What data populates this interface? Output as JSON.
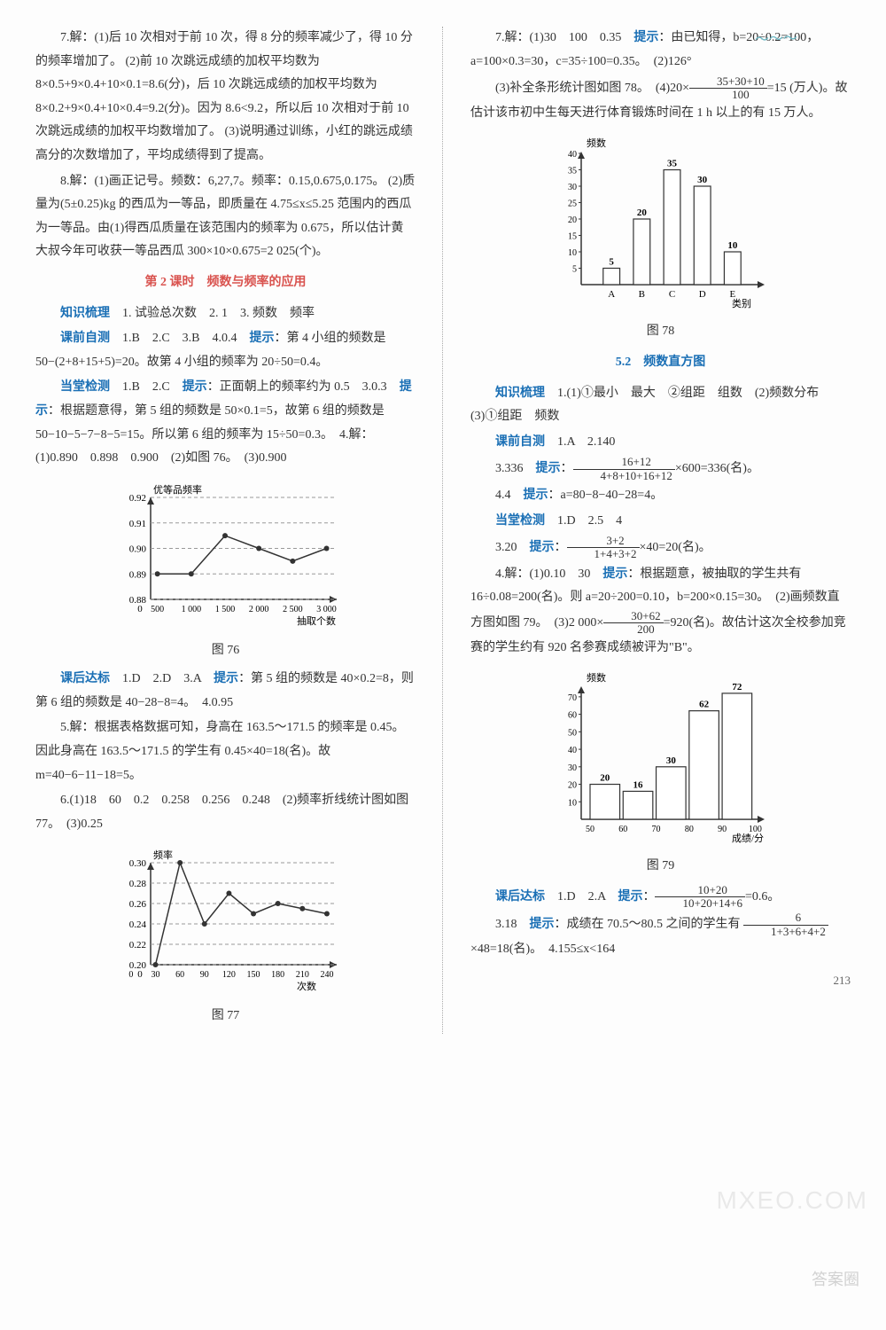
{
  "left": {
    "p7": "7.解：(1)后 10 次相对于前 10 次，得 8 分的频率减少了，得 10 分的频率增加了。 (2)前 10 次跳远成绩的加权平均数为 8×0.5+9×0.4+10×0.1=8.6(分)，后 10 次跳远成绩的加权平均数为 8×0.2+9×0.4+10×0.4=9.2(分)。因为 8.6<9.2，所以后 10 次相对于前 10 次跳远成绩的加权平均数增加了。 (3)说明通过训练，小红的跳远成绩高分的次数增加了，平均成绩得到了提高。",
    "p8": "8.解：(1)画正记号。频数：6,27,7。频率：0.15,0.675,0.175。 (2)质量为(5±0.25)kg 的西瓜为一等品，即质量在 4.75≤x≤5.25 范围内的西瓜为一等品。由(1)得西瓜质量在该范围内的频率为 0.675，所以估计黄大叔今年可收获一等品西瓜 300×10×0.675=2 025(个)。",
    "sec2_title": "第 2 课时　频数与频率的应用",
    "zs_label": "知识梳理",
    "zs_text": "　1. 试验总次数　2. 1　3. 频数　频率",
    "kq_label": "课前自测",
    "kq_text": "　1.B　2.C　3.B　4.0.4　",
    "kq_hint": "提示",
    "kq_hint_text": "：第 4 小组的频数是 50−(2+8+15+5)=20。故第 4 小组的频率为 20÷50=0.4。",
    "dt_label": "当堂检测",
    "dt_text": "　1.B　2.C　",
    "dt_hint": "提示",
    "dt_hint_text": "：正面朝上的频率约为 0.5　3.0.3　",
    "dt_hint2": "提示",
    "dt_hint2_text": "：根据题意得，第 5 组的频数是 50×0.1=5，故第 6 组的频数是 50−10−5−7−8−5=15。所以第 6 组的频率为 15÷50=0.3。　4.解：(1)0.890　0.898　0.900　(2)如图 76。　(3)0.900",
    "chart76": {
      "type": "line",
      "ylabel": "优等品频率",
      "xlabel": "抽取个数",
      "x_ticks": [
        "500",
        "1 000",
        "1 500",
        "2 000",
        "2 500",
        "3 000"
      ],
      "y_ticks": [
        "0.88",
        "0.89",
        "0.90",
        "0.91",
        "0.92"
      ],
      "y_min": 0.88,
      "y_max": 0.92,
      "points": [
        [
          500,
          0.89
        ],
        [
          1000,
          0.89
        ],
        [
          1500,
          0.905
        ],
        [
          2000,
          0.9
        ],
        [
          2500,
          0.895
        ],
        [
          3000,
          0.9
        ]
      ],
      "line_color": "#333333",
      "marker": "circle",
      "grid_dash": "4,3",
      "caption": "图 76"
    },
    "kh_label": "课后达标",
    "kh_text": "　1.D　2.D　3.A　",
    "kh_hint": "提示",
    "kh_hint_text": "：第 5 组的频数是 40×0.2=8，则第 6 组的频数是 40−28−8=4。　4.0.95",
    "p5": "5.解：根据表格数据可知，身高在 163.5～171.5 的频率是 0.45。因此身高在 163.5～171.5 的学生有 0.45×40=18(名)。故 m=40−6−11−18=5。",
    "p6": "6.(1)18　60　0.2　0.258　0.256　0.248　(2)频率折线统计图如图 77。　(3)0.25",
    "chart77": {
      "type": "line",
      "ylabel": "频率",
      "xlabel": "次数",
      "x_ticks": [
        "0",
        "30",
        "60",
        "90",
        "120",
        "150",
        "180",
        "210",
        "240"
      ],
      "y_ticks": [
        "0.20",
        "0.22",
        "0.24",
        "0.26",
        "0.28",
        "0.30"
      ],
      "y_min": 0.2,
      "y_max": 0.3,
      "points": [
        [
          30,
          0.2
        ],
        [
          60,
          0.3
        ],
        [
          90,
          0.24
        ],
        [
          120,
          0.27
        ],
        [
          150,
          0.25
        ],
        [
          180,
          0.26
        ],
        [
          210,
          0.255
        ],
        [
          240,
          0.25
        ]
      ],
      "line_color": "#333333",
      "marker": "circle",
      "grid_dash": "4,3",
      "caption": "图 77"
    }
  },
  "right": {
    "p7": "7.解：(1)30　100　0.35　",
    "p7_hint": "提示",
    "p7_hint_text": "：由已知得，b=20÷0.2=100，a=100×0.3=30，c=35÷100=0.35。　(2)126°",
    "p7b_pre": "(3)补全条形统计图如图 78。　(4)20×",
    "p7b_frac_num": "35+30+10",
    "p7b_frac_den": "100",
    "p7b_post": "=15 (万人)。故估计该市初中生每天进行体育锻炼时间在 1 h 以上的有 15 万人。",
    "chart78": {
      "type": "bar",
      "ylabel": "频数",
      "xlabel": "类别",
      "categories": [
        "A",
        "B",
        "C",
        "D",
        "E"
      ],
      "values": [
        5,
        20,
        35,
        30,
        10
      ],
      "value_labels": [
        "5",
        "20",
        "35",
        "30",
        "10"
      ],
      "y_ticks": [
        "5",
        "10",
        "15",
        "20",
        "25",
        "30",
        "35",
        "40"
      ],
      "y_max": 40,
      "bar_fill": "#ffffff",
      "bar_stroke": "#333333",
      "caption": "图 78"
    },
    "sec52_title": "5.2　频数直方图",
    "zs_label": "知识梳理",
    "zs_text": "　1.(1)①最小　最大　②组距　组数　(2)频数分布　(3)①组距　频数",
    "kq_label": "课前自测",
    "kq_text": "　1.A　2.140",
    "kq3_pre": "3.336　",
    "kq3_hint": "提示",
    "kq3_mid": "：",
    "kq3_frac_num": "16+12",
    "kq3_frac_den": "4+8+10+16+12",
    "kq3_post": "×600=336(名)。",
    "kq4_pre": "4.4　",
    "kq4_hint": "提示",
    "kq4_text": "：a=80−8−40−28=4。",
    "dt_label": "当堂检测",
    "dt_text": "　1.D　2.5　4",
    "dt3_pre": "3.20　",
    "dt3_hint": "提示",
    "dt3_mid": "：",
    "dt3_frac_num": "3+2",
    "dt3_frac_den": "1+4+3+2",
    "dt3_post": "×40=20(名)。",
    "p4a": "4.解：(1)0.10　30　",
    "p4a_hint": "提示",
    "p4a_text": "：根据题意，被抽取的学生共有 16÷0.08=200(名)。则 a=20÷200=0.10，b=200×0.15=30。　(2)画频数直方图如图 79。　(3)2 000×",
    "p4a_frac_num": "30+62",
    "p4a_frac_den": "200",
    "p4a_post": "=920(名)。故估计这次全校参加竞赛的学生约有 920 名参赛成绩被评为\"B\"。",
    "chart79": {
      "type": "bar",
      "ylabel": "频数",
      "xlabel": "成绩/分",
      "edges": [
        "50",
        "60",
        "70",
        "80",
        "90",
        "100"
      ],
      "values": [
        20,
        16,
        30,
        62,
        72
      ],
      "value_labels": [
        "20",
        "16",
        "30",
        "62",
        "72"
      ],
      "y_ticks": [
        "10",
        "20",
        "30",
        "40",
        "50",
        "60",
        "70"
      ],
      "y_max": 75,
      "bar_fill": "#ffffff",
      "bar_stroke": "#333333",
      "caption": "图 79"
    },
    "kh_label": "课后达标",
    "kh_text": "　1.D　2.A　",
    "kh_hint": "提示",
    "kh_mid": "：",
    "kh_frac_num": "10+20",
    "kh_frac_den": "10+20+14+6",
    "kh_post": "=0.6。",
    "p3_pre": "3.18　",
    "p3_hint": "提示",
    "p3_mid": "：成绩在 70.5～80.5 之间的学生有 ",
    "p3_frac_num": "6",
    "p3_frac_den": "1+3+6+4+2",
    "p3_post": "×48=18(名)。　4.155≤x<164"
  },
  "pagenum": "213",
  "watermark1": "MXEO.COM",
  "watermark2": "答案圈"
}
